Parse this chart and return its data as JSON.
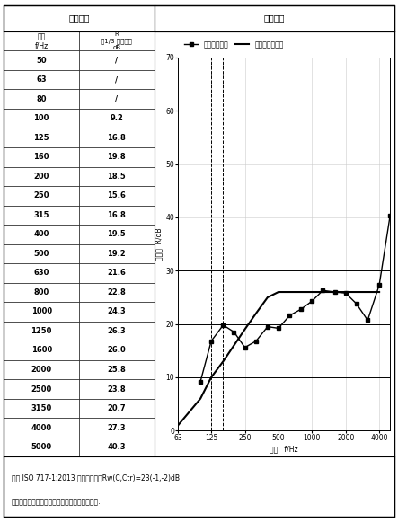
{
  "title_left": "检测数据",
  "title_right": "检测图谱",
  "col1_header_line1": "频率",
  "col1_header_line2": "f/Hz",
  "col2_header_line1": "R",
  "col2_header_line2": "（1/3 倍频程）",
  "col2_header_line3": "dB",
  "table_data": [
    [
      "50",
      "/"
    ],
    [
      "63",
      "/"
    ],
    [
      "80",
      "/"
    ],
    [
      "100",
      "9.2"
    ],
    [
      "125",
      "16.8"
    ],
    [
      "160",
      "19.8"
    ],
    [
      "200",
      "18.5"
    ],
    [
      "250",
      "15.6"
    ],
    [
      "315",
      "16.8"
    ],
    [
      "400",
      "19.5"
    ],
    [
      "500",
      "19.2"
    ],
    [
      "630",
      "21.6"
    ],
    [
      "800",
      "22.8"
    ],
    [
      "1000",
      "24.3"
    ],
    [
      "1250",
      "26.3"
    ],
    [
      "1600",
      "26.0"
    ],
    [
      "2000",
      "25.8"
    ],
    [
      "2500",
      "23.8"
    ],
    [
      "3150",
      "20.7"
    ],
    [
      "4000",
      "27.3"
    ],
    [
      "5000",
      "40.3"
    ]
  ],
  "freqs_measurement": [
    100,
    125,
    160,
    200,
    250,
    315,
    400,
    500,
    630,
    800,
    1000,
    1250,
    1600,
    2000,
    2500,
    3150,
    4000,
    5000
  ],
  "values_measurement": [
    9.2,
    16.8,
    19.8,
    18.5,
    15.6,
    16.8,
    19.5,
    19.2,
    21.6,
    22.8,
    24.3,
    26.3,
    26.0,
    25.8,
    23.8,
    20.7,
    27.3,
    40.3
  ],
  "freqs_reference": [
    63,
    100,
    125,
    160,
    200,
    250,
    315,
    400,
    500,
    630,
    800,
    1000,
    1250,
    1600,
    2000,
    2500,
    3150,
    4000
  ],
  "values_reference": [
    1.0,
    6.0,
    10.0,
    13.0,
    16.0,
    19.0,
    22.0,
    25.0,
    26.0,
    26.0,
    26.0,
    26.0,
    26.0,
    26.0,
    26.0,
    26.0,
    26.0,
    26.0
  ],
  "ylabel": "隔声量  R/dB",
  "xlabel": "频率   f/Hz",
  "ylim": [
    0,
    70
  ],
  "yticks": [
    0,
    10,
    20,
    30,
    40,
    50,
    60,
    70
  ],
  "xtick_vals": [
    63,
    125,
    250,
    500,
    1000,
    2000,
    4000
  ],
  "legend1": "空气声隔声量",
  "legend2": "空气声参考曲线",
  "footer1": "按照 ISO 717-1:2013 的评价结果：Rw(C,Ctr)=23(-1,-2)dB",
  "footer2": "本报告的评价结果是根据实验室测量结果得到的.",
  "vline1": 125,
  "vline2": 160,
  "hlines": [
    10,
    20,
    30
  ],
  "bg_color": "#ffffff"
}
